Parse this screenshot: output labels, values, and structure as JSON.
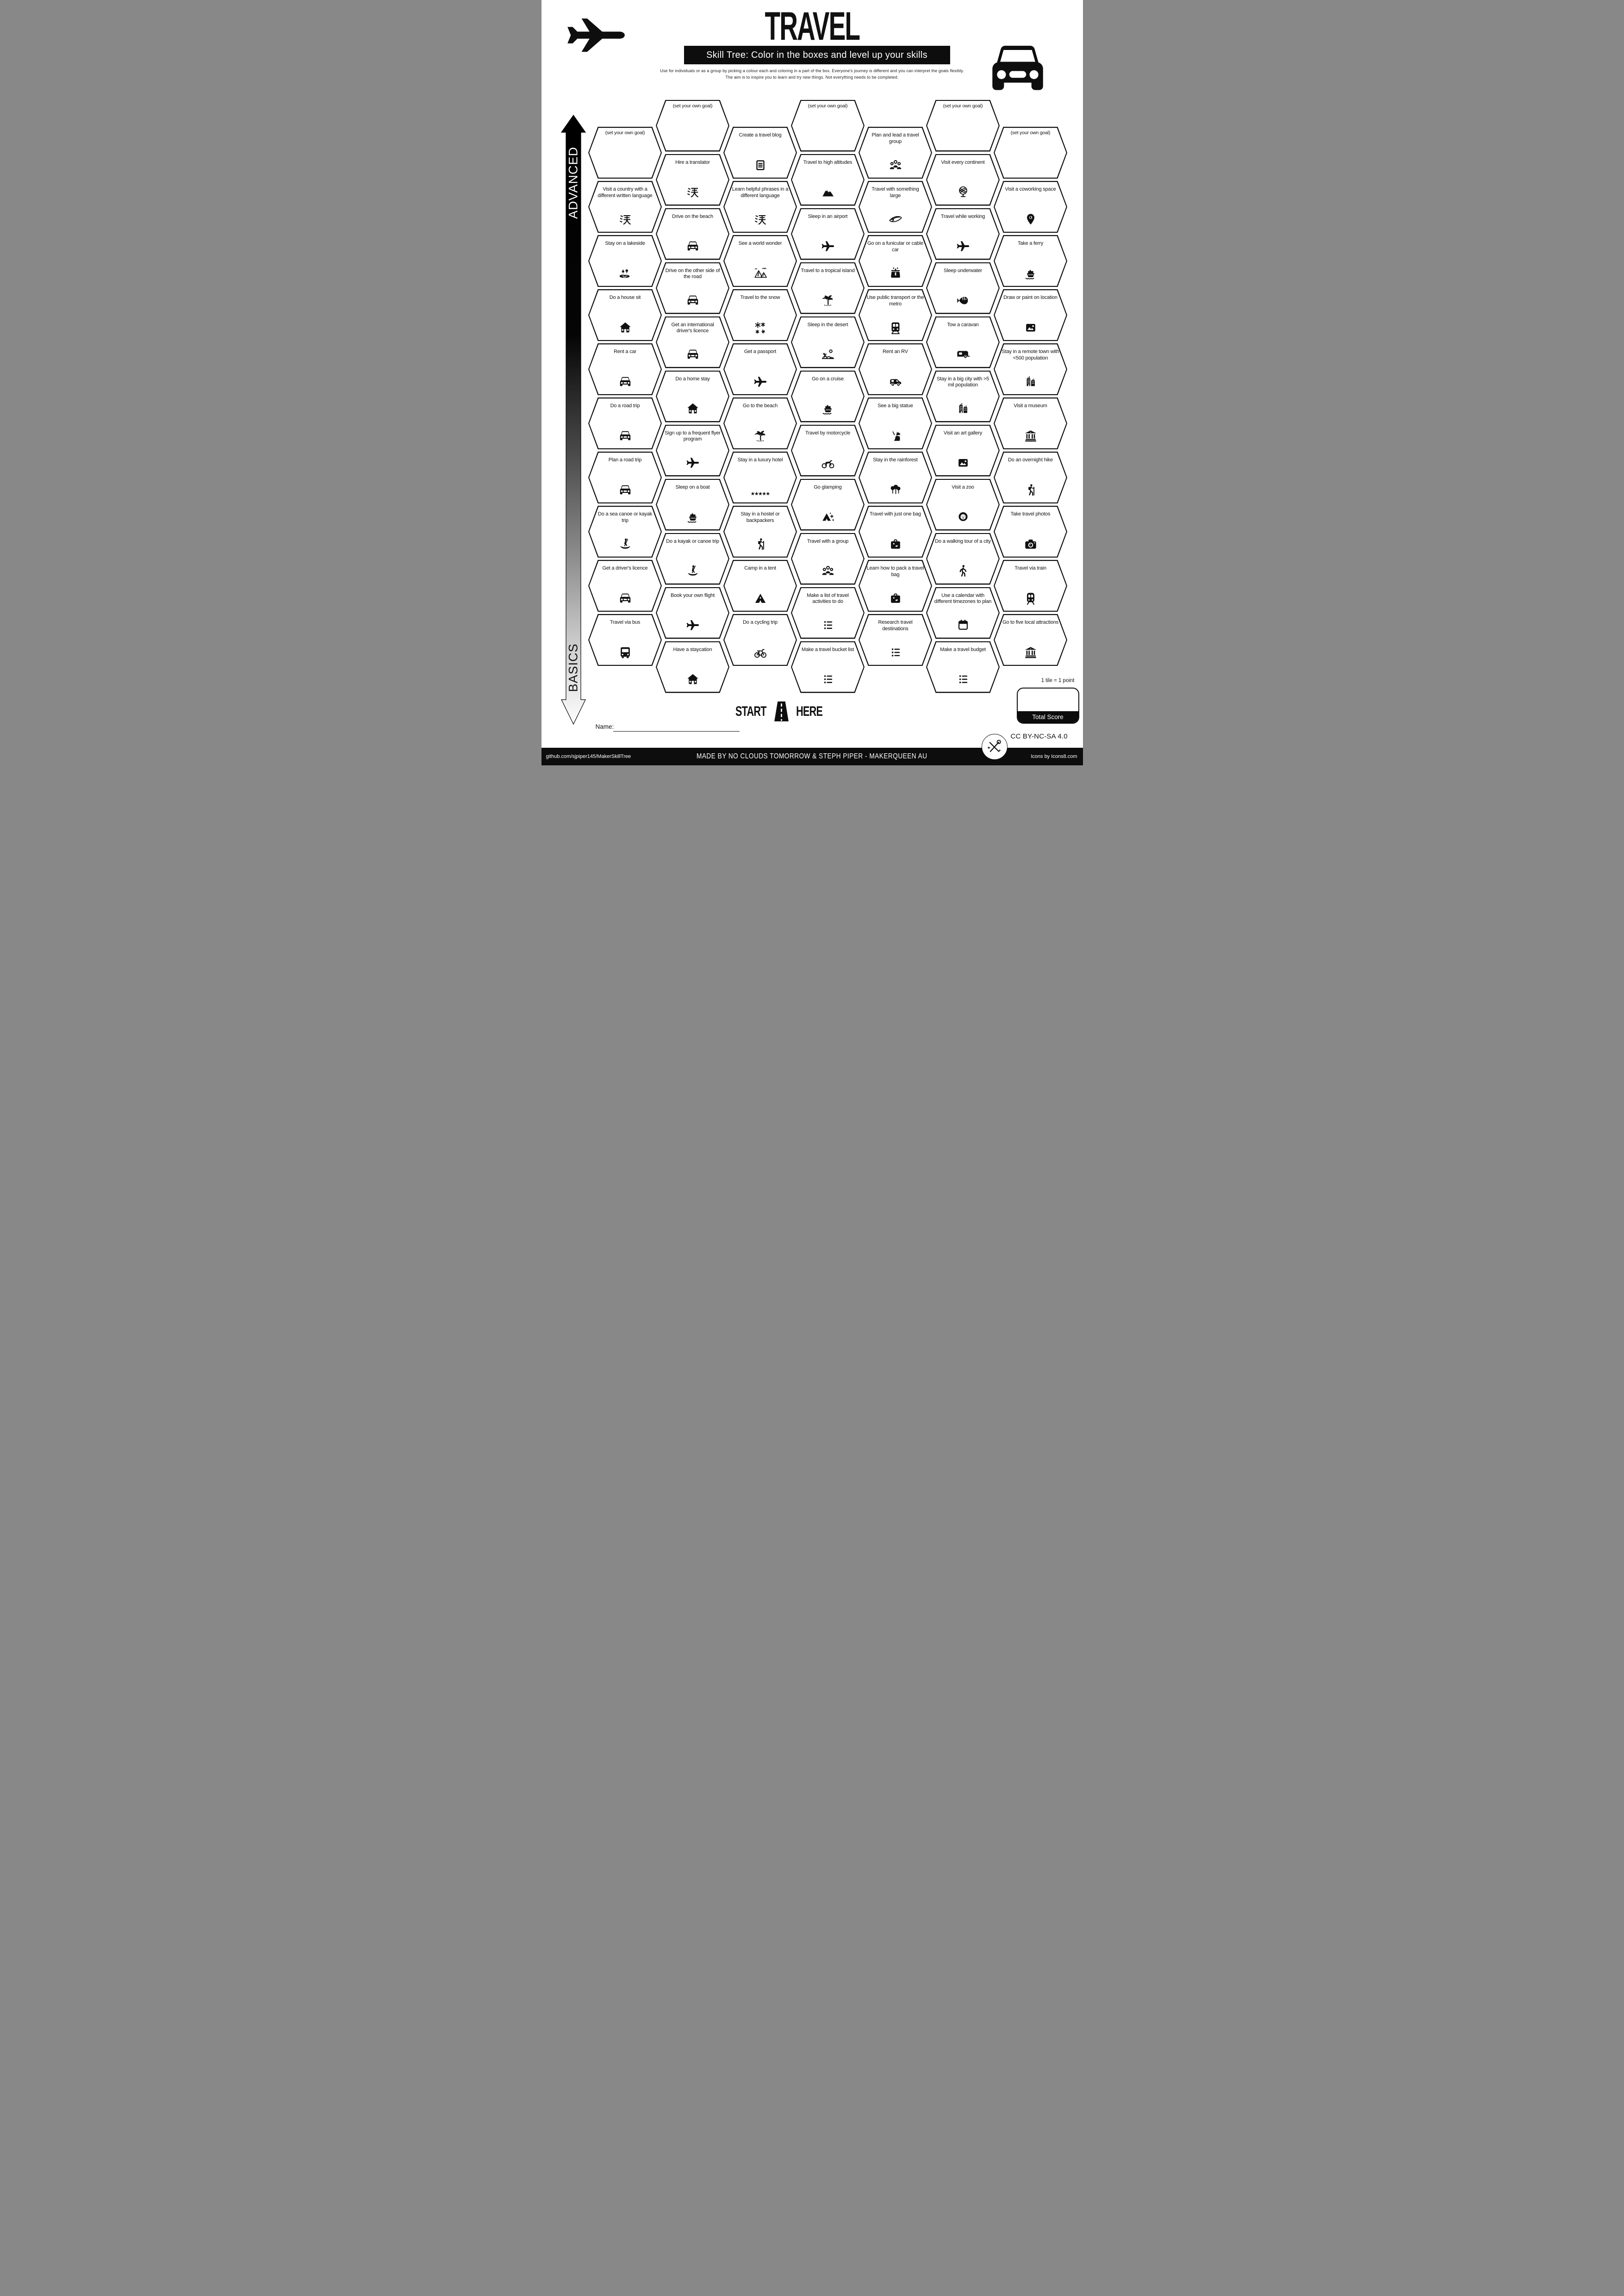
{
  "page": {
    "title": "TRAVEL",
    "banner": "Skill Tree:  Color in the boxes and level up your skills",
    "intro": "Use for individuals or as a group by picking a colour each and coloring in a part of the box.  Everyone's journey is different and you can interpret the goals flexibly.  The aim is to inspire you to learn and try new things. Not everything needs to be completed."
  },
  "axis": {
    "top_label": "ADVANCED",
    "bottom_label": "BASICS"
  },
  "start_here": {
    "left": "START",
    "right": "HERE"
  },
  "name_field": {
    "label": "Name:",
    "value": ""
  },
  "scoring": {
    "tile_note": "1 tile = 1 point",
    "total_label": "Total Score",
    "value": ""
  },
  "license": "CC BY-NC-SA 4.0",
  "footer": {
    "left": "github.com/sjpiper145/MakerSkillTree",
    "center": "MADE BY NO CLOUDS TOMORROW & STEPH PIPER  -  MAKERQUEEN AU",
    "right": "Icons by Icons8.com"
  },
  "colors": {
    "ink": "#111111",
    "paper": "#ffffff",
    "bar": "#0d0d0d"
  },
  "grid": {
    "columns": [
      {
        "hexes": [
          {
            "label": "(set your own goal)",
            "icon": null
          },
          {
            "label": "Visit a country with a different written language",
            "icon": "kanji-icon"
          },
          {
            "label": "Stay on a lakeside",
            "icon": "lakeside-icon"
          },
          {
            "label": "Do a house sit",
            "icon": "house-icon"
          },
          {
            "label": "Rent a car",
            "icon": "car-icon"
          },
          {
            "label": "Do a road trip",
            "icon": "car-icon"
          },
          {
            "label": "Plan a road trip",
            "icon": "car-icon"
          },
          {
            "label": "Do a sea canoe or kayak trip",
            "icon": "canoe-icon"
          },
          {
            "label": "Get a driver's licence",
            "icon": "car-icon"
          },
          {
            "label": "Travel via bus",
            "icon": "bus-icon"
          }
        ]
      },
      {
        "hexes": [
          {
            "label": "(set your own goal)",
            "icon": null
          },
          {
            "label": "Hire a translator",
            "icon": "kanji-icon"
          },
          {
            "label": "Drive on the beach",
            "icon": "car-icon"
          },
          {
            "label": "Drive on the other side of the road",
            "icon": "car-icon"
          },
          {
            "label": "Get an international driver's licence",
            "icon": "car-icon"
          },
          {
            "label": "Do a home stay",
            "icon": "house-icon"
          },
          {
            "label": "Sign up to a frequent flyer program",
            "icon": "plane-icon"
          },
          {
            "label": "Sleep on a boat",
            "icon": "ship-icon"
          },
          {
            "label": "Do a kayak or canoe trip",
            "icon": "canoe-icon"
          },
          {
            "label": "Book your own flight",
            "icon": "plane-icon"
          },
          {
            "label": "Have a staycation",
            "icon": "house-icon"
          }
        ]
      },
      {
        "hexes": [
          {
            "label": "Create a travel blog",
            "icon": "blog-icon"
          },
          {
            "label": "Learn helpful phrases in a different language",
            "icon": "kanji-icon"
          },
          {
            "label": "See a world wonder",
            "icon": "pyramids-icon"
          },
          {
            "label": "Travel to the snow",
            "icon": "snowflakes-icon"
          },
          {
            "label": "Get a passport",
            "icon": "plane-icon"
          },
          {
            "label": "Go to the beach",
            "icon": "palm-island-icon"
          },
          {
            "label": "Stay in a luxury hotel",
            "icon": "stars-icon"
          },
          {
            "label": "Stay in a hostel or backpackers",
            "icon": "hiker-icon"
          },
          {
            "label": "Camp in a tent",
            "icon": "tent-icon"
          },
          {
            "label": "Do a cycling trip",
            "icon": "bicycle-icon"
          }
        ]
      },
      {
        "hexes": [
          {
            "label": "(set your own goal)",
            "icon": null
          },
          {
            "label": "Travel to high altitudes",
            "icon": "mountains-icon"
          },
          {
            "label": "Sleep in an airport",
            "icon": "plane-icon"
          },
          {
            "label": "Travel to a tropical island",
            "icon": "palm-island-icon"
          },
          {
            "label": "Sleep in the desert",
            "icon": "desert-icon"
          },
          {
            "label": "Go on a cruise",
            "icon": "ship-icon"
          },
          {
            "label": "Travel by motorcycle",
            "icon": "motorcycle-icon"
          },
          {
            "label": "Go glamping",
            "icon": "glamping-icon"
          },
          {
            "label": "Travel with a group",
            "icon": "group-icon"
          },
          {
            "label": "Make a list of travel activities to do",
            "icon": "checklist-icon"
          },
          {
            "label": "Make a travel bucket list",
            "icon": "checklist-icon"
          }
        ]
      },
      {
        "hexes": [
          {
            "label": "Plan and lead a travel group",
            "icon": "group-icon"
          },
          {
            "label": "Travel with something large",
            "icon": "surfboard-icon"
          },
          {
            "label": "Go on a funicular or cable car",
            "icon": "cablecar-icon"
          },
          {
            "label": "Use public transport or the metro",
            "icon": "metro-icon"
          },
          {
            "label": "Rent an RV",
            "icon": "rv-icon"
          },
          {
            "label": "See a big statue",
            "icon": "statue-icon"
          },
          {
            "label": "Stay in the rainforest",
            "icon": "trees-icon"
          },
          {
            "label": "Travel with just one bag",
            "icon": "suitcase-icon"
          },
          {
            "label": "Learn how to pack a travel bag",
            "icon": "suitcase-icon"
          },
          {
            "label": "Research travel destinations",
            "icon": "checklist-icon"
          }
        ]
      },
      {
        "hexes": [
          {
            "label": "(set your own goal)",
            "icon": null
          },
          {
            "label": "Visit every continent",
            "icon": "globe-icon"
          },
          {
            "label": "Travel while working",
            "icon": "plane-icon"
          },
          {
            "label": "Sleep underwater",
            "icon": "fish-icon"
          },
          {
            "label": "Tow a caravan",
            "icon": "caravan-icon"
          },
          {
            "label": "Stay in a big city with >5 mil population",
            "icon": "buildings-icon"
          },
          {
            "label": "Visit an art gallery",
            "icon": "picture-icon"
          },
          {
            "label": "Visit a zoo",
            "icon": "lion-icon"
          },
          {
            "label": "Do a walking tour of a city",
            "icon": "walker-icon"
          },
          {
            "label": "Use a calendar with different timezones to plan",
            "icon": "calendar-icon"
          },
          {
            "label": "Make a travel budget",
            "icon": "checklist-icon"
          }
        ]
      },
      {
        "hexes": [
          {
            "label": "(set your own goal)",
            "icon": null
          },
          {
            "label": "Visit a coworking space",
            "icon": "pin-icon"
          },
          {
            "label": "Take a ferry",
            "icon": "ferry-icon"
          },
          {
            "label": "Draw or paint on location",
            "icon": "picture-icon"
          },
          {
            "label": "Stay in a remote town with <500 population",
            "icon": "buildings-icon"
          },
          {
            "label": "Visit a museum",
            "icon": "museum-icon"
          },
          {
            "label": "Do an overnight hike",
            "icon": "hiker-icon"
          },
          {
            "label": "Take travel photos",
            "icon": "camera-icon"
          },
          {
            "label": "Travel via train",
            "icon": "train-icon"
          },
          {
            "label": "Go to five local attractions",
            "icon": "museum-icon"
          }
        ]
      }
    ]
  }
}
